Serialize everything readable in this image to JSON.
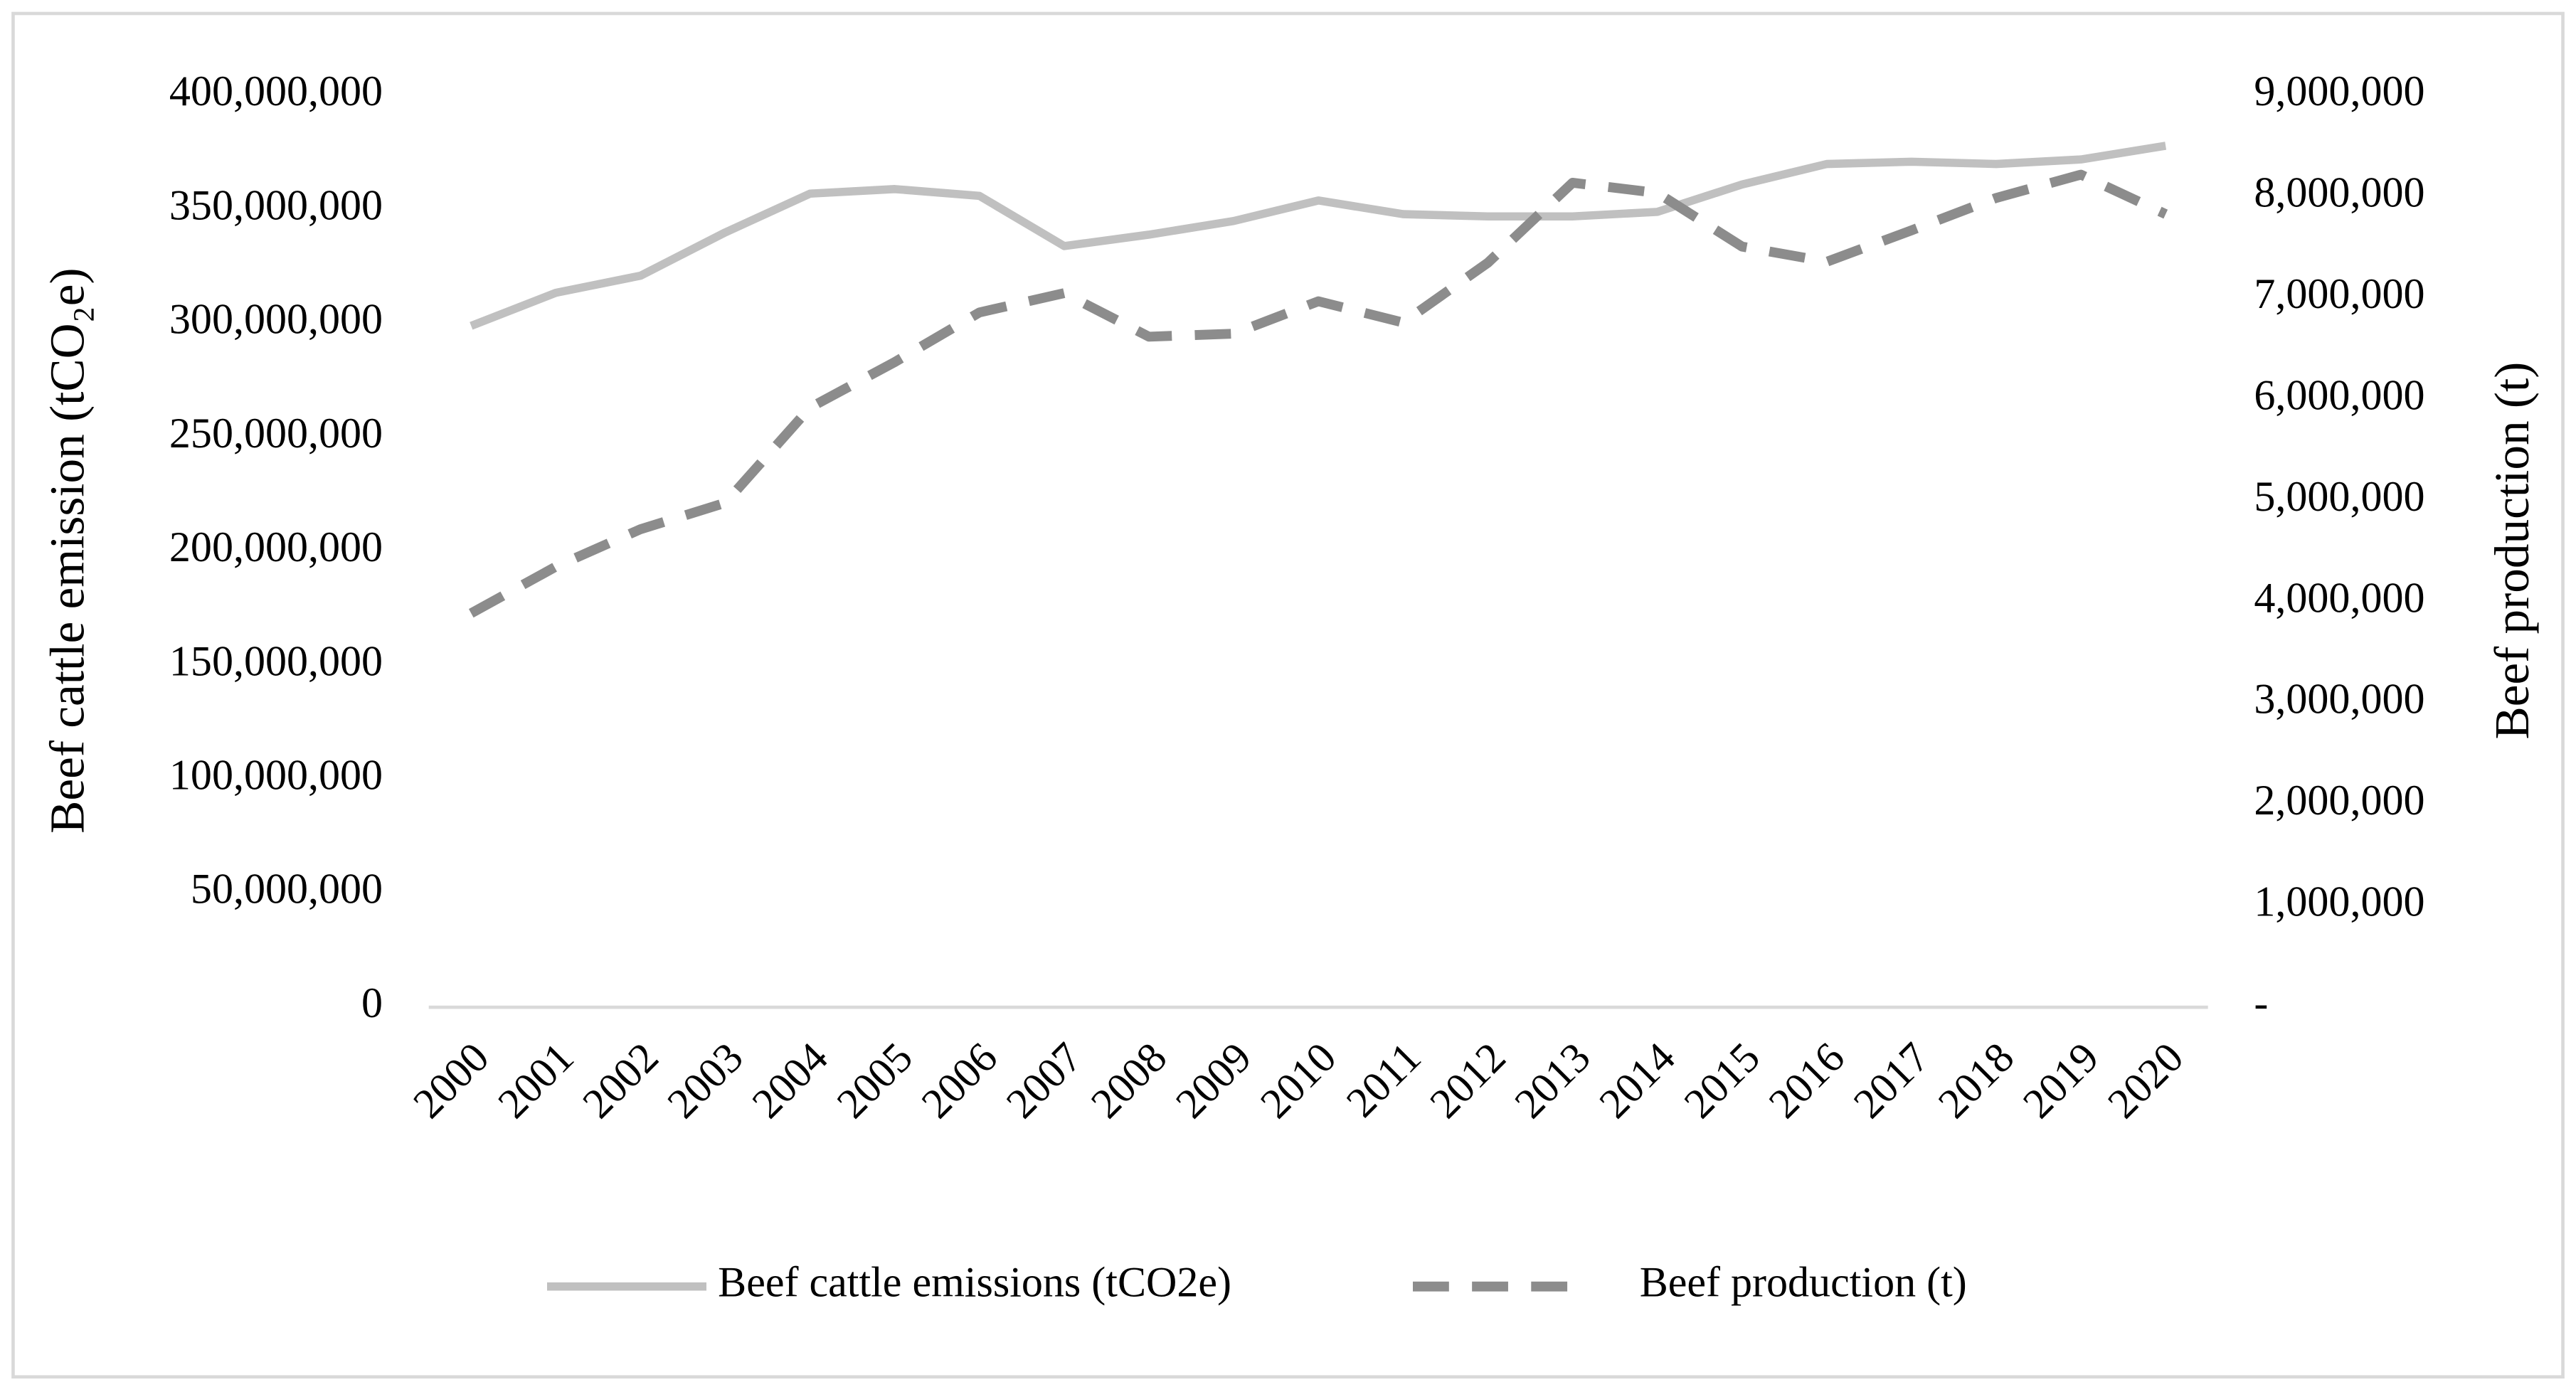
{
  "chart_data": {
    "type": "line",
    "y_label": "Beef cattle emission (tCO₂e)",
    "y2_label": "Beef production (t)",
    "categories": [
      "2000",
      "2001",
      "2002",
      "2003",
      "2004",
      "2005",
      "2006",
      "2007",
      "2008",
      "2009",
      "2010",
      "2011",
      "2012",
      "2013",
      "2014",
      "2015",
      "2016",
      "2017",
      "2018",
      "2019",
      "2020"
    ],
    "series": [
      {
        "name": "Beef cattle emissions (tCO2e)",
        "color": "#c0c0c0",
        "style": "solid",
        "values": [
          299000000,
          313500000,
          321000000,
          340000000,
          357000000,
          359000000,
          356000000,
          334000000,
          339000000,
          345000000,
          354000000,
          348000000,
          347000000,
          347000000,
          349000000,
          361000000,
          370000000,
          371000000,
          370000000,
          372000000,
          378000000
        ]
      },
      {
        "name": "Beef production (t)",
        "color": "#8c8c8c",
        "style": "dashed",
        "axis": "y2",
        "values": [
          3890000,
          4350000,
          4720000,
          4980000,
          5920000,
          6370000,
          6860000,
          7050000,
          6620000,
          6650000,
          6970000,
          6760000,
          7350000,
          8140000,
          8040000,
          7510000,
          7360000,
          7670000,
          7990000,
          8220000,
          7830000
        ]
      }
    ],
    "ylim": [
      0,
      400000000
    ],
    "yticks": [
      0,
      {
        "value": 50000000,
        "label": "50,000,000"
      },
      {
        "value": 100000000,
        "label": "100,000,000"
      },
      {
        "value": 150000000,
        "label": "150,000,000"
      },
      {
        "value": 200000000,
        "label": "200,000,000"
      },
      {
        "value": 250000000,
        "label": "250,000,000"
      },
      {
        "value": 300000000,
        "label": "300,000,000"
      },
      {
        "value": 350000000,
        "label": "350,000,000"
      },
      {
        "value": 400000000,
        "label": "400,000,000"
      }
    ],
    "y2lim": [
      0,
      9000000
    ],
    "y2ticks": [
      {
        "value": 0,
        "label": "-"
      },
      {
        "value": 1000000,
        "label": "1,000,000"
      },
      {
        "value": 2000000,
        "label": "2,000,000"
      },
      {
        "value": 3000000,
        "label": "3,000,000"
      },
      {
        "value": 4000000,
        "label": "4,000,000"
      },
      {
        "value": 5000000,
        "label": "5,000,000"
      },
      {
        "value": 6000000,
        "label": "6,000,000"
      },
      {
        "value": 7000000,
        "label": "7,000,000"
      },
      {
        "value": 8000000,
        "label": "8,000,000"
      },
      {
        "value": 9000000,
        "label": "9,000,000"
      }
    ],
    "legend": "bottom"
  }
}
